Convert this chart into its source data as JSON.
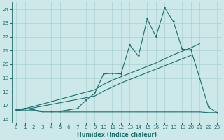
{
  "background_color": "#cce8e8",
  "grid_color": "#aad0d0",
  "line_color": "#1a6e6e",
  "xlabel": "Humidex (Indice chaleur)",
  "xlim": [
    -0.5,
    23.5
  ],
  "ylim": [
    15.8,
    24.5
  ],
  "yticks": [
    16,
    17,
    18,
    19,
    20,
    21,
    22,
    23,
    24
  ],
  "xticks": [
    0,
    1,
    2,
    3,
    4,
    5,
    6,
    7,
    8,
    9,
    10,
    11,
    12,
    13,
    14,
    15,
    16,
    17,
    18,
    19,
    20,
    21,
    22,
    23
  ],
  "spiky_x": [
    0,
    1,
    2,
    3,
    4,
    5,
    6,
    7,
    8,
    9,
    10,
    11,
    12,
    13,
    14,
    15,
    16,
    17,
    18,
    19,
    20,
    21,
    22,
    23
  ],
  "spiky_y": [
    16.7,
    16.8,
    16.7,
    16.6,
    16.6,
    16.6,
    16.7,
    16.8,
    17.4,
    17.9,
    19.3,
    19.35,
    19.3,
    21.4,
    20.6,
    23.3,
    22.0,
    24.1,
    23.1,
    21.1,
    21.05,
    19.0,
    16.9,
    16.5
  ],
  "diag1_x": [
    0,
    1,
    2,
    9,
    10,
    11,
    12,
    13,
    14,
    15,
    16,
    17,
    18,
    19,
    20,
    21
  ],
  "diag1_y": [
    16.7,
    16.8,
    16.95,
    18.15,
    18.55,
    18.85,
    19.1,
    19.35,
    19.6,
    19.85,
    20.1,
    20.4,
    20.7,
    20.95,
    21.2,
    21.5
  ],
  "diag2_x": [
    0,
    1,
    2,
    9,
    10,
    11,
    12,
    13,
    14,
    15,
    16,
    17,
    18,
    19,
    20
  ],
  "diag2_y": [
    16.65,
    16.75,
    16.85,
    17.7,
    18.05,
    18.35,
    18.65,
    18.9,
    19.15,
    19.4,
    19.65,
    19.9,
    20.15,
    20.4,
    20.65
  ],
  "flat_x": [
    0,
    1,
    2,
    3,
    4,
    5,
    6,
    7,
    8,
    9,
    10,
    11,
    12,
    13,
    14,
    15,
    16,
    17,
    18,
    19,
    20,
    21,
    22,
    23
  ],
  "flat_y": [
    16.65,
    16.65,
    16.65,
    16.55,
    16.55,
    16.55,
    16.55,
    16.55,
    16.55,
    16.55,
    16.55,
    16.55,
    16.55,
    16.55,
    16.55,
    16.55,
    16.55,
    16.55,
    16.55,
    16.55,
    16.55,
    16.55,
    16.5,
    16.5
  ]
}
